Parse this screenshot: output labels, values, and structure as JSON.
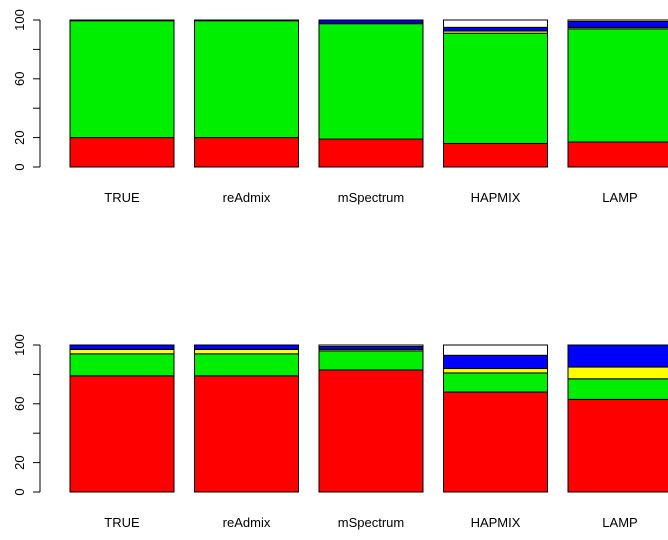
{
  "colors": {
    "red": "#ff0000",
    "green": "#00ee00",
    "yellow": "#ffff00",
    "blue": "#0000ff",
    "white": "#ffffff"
  },
  "chart_data": [
    {
      "type": "bar",
      "stacked": true,
      "categories": [
        "TRUE",
        "reAdmix",
        "mSpectrum",
        "HAPMIX",
        "LAMP"
      ],
      "ylim": [
        0,
        100
      ],
      "yticks": [
        0,
        20,
        60,
        100
      ],
      "series": [
        {
          "color": "red",
          "values": [
            20,
            20,
            19,
            16,
            17
          ]
        },
        {
          "color": "green",
          "values": [
            79.5,
            79.5,
            78.5,
            75,
            77
          ]
        },
        {
          "color": "yellow",
          "values": [
            0.2,
            0.2,
            0.3,
            1.5,
            1
          ]
        },
        {
          "color": "blue",
          "values": [
            0.3,
            0.3,
            2.2,
            2.5,
            4
          ]
        },
        {
          "color": "white",
          "values": [
            0,
            0,
            0,
            5,
            1
          ]
        }
      ]
    },
    {
      "type": "bar",
      "stacked": true,
      "categories": [
        "TRUE",
        "reAdmix",
        "mSpectrum",
        "HAPMIX",
        "LAMP"
      ],
      "ylim": [
        0,
        100
      ],
      "yticks": [
        0,
        20,
        60,
        100
      ],
      "series": [
        {
          "color": "red",
          "values": [
            79,
            79,
            83,
            68,
            63
          ]
        },
        {
          "color": "green",
          "values": [
            15,
            15,
            13,
            13,
            14
          ]
        },
        {
          "color": "yellow",
          "values": [
            3,
            3,
            1,
            3,
            8
          ]
        },
        {
          "color": "blue",
          "values": [
            3,
            3,
            2,
            9,
            15
          ]
        },
        {
          "color": "white",
          "values": [
            0,
            0,
            1,
            7,
            0
          ]
        }
      ]
    }
  ]
}
